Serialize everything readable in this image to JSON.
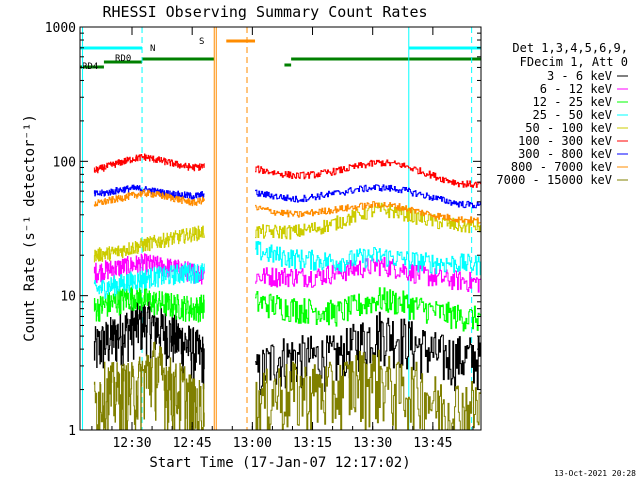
{
  "chart_data": {
    "type": "line",
    "title": "RHESSI Observing Summary Count Rates",
    "xlabel": "Start Time (17-Jan-07 12:17:02)",
    "ylabel": "Count Rate (s⁻¹ detector⁻¹)",
    "yscale": "log",
    "ylim": [
      1,
      1000
    ],
    "xlim": [
      "12:17:02",
      "13:57:00"
    ],
    "x_ticks": [
      "12:30",
      "12:45",
      "13:00",
      "13:15",
      "13:30",
      "13:45"
    ],
    "y_ticks": [
      "1",
      "10",
      "100",
      "1000"
    ],
    "timestamp": "13-Oct-2021 20:28",
    "legend": {
      "placement": "right",
      "header": [
        "Det 1,3,4,5,6,9,",
        "FDecim 1, Att 0"
      ]
    },
    "flags": [
      {
        "label": "RD4",
        "color": "#008000"
      },
      {
        "label": "RD0",
        "color": "#008000"
      },
      {
        "label": "N",
        "color": "#00ffff"
      },
      {
        "label": "S",
        "color": "#ff8c00"
      }
    ],
    "series": [
      {
        "name": "3 - 6 keV",
        "color": "#000000",
        "before": [
          4,
          4.5,
          5,
          5.5,
          6,
          6.5,
          6,
          5.5,
          5,
          4.5,
          4,
          3.5
        ],
        "after": [
          2.5,
          3.5,
          3.5,
          3.5,
          3.5,
          4.5,
          5.5,
          5,
          4.2,
          3.6,
          3.5,
          3.5
        ]
      },
      {
        "name": "6 - 12 keV",
        "color": "#ff00ff",
        "before": [
          15,
          15.5,
          16,
          16.5,
          17,
          17.5,
          17,
          16.5,
          16,
          15.5,
          15,
          14.5
        ],
        "after": [
          14,
          14,
          14,
          14,
          15,
          16,
          17,
          16,
          14.5,
          13.5,
          13,
          12.5
        ]
      },
      {
        "name": "12 - 25 keV",
        "color": "#00ff00",
        "before": [
          8,
          8.5,
          9,
          9.5,
          10,
          9.5,
          9,
          8.8,
          8.5,
          8.3,
          8,
          8.5
        ],
        "after": [
          9,
          8.5,
          8,
          7.8,
          7.5,
          8.5,
          9.5,
          9,
          8.2,
          7.5,
          7,
          6.8
        ]
      },
      {
        "name": "25 - 50 keV",
        "color": "#00ffff",
        "before": [
          11,
          11.5,
          12,
          12.5,
          13,
          13.5,
          14,
          14,
          14.5,
          15,
          15,
          15
        ],
        "after": [
          22,
          20,
          19,
          18.5,
          18,
          19,
          20,
          19,
          18,
          17.5,
          17.5,
          17
        ]
      },
      {
        "name": "50 - 100 keV",
        "color": "#cccc00",
        "before": [
          20,
          20.5,
          21,
          22,
          23,
          24,
          25,
          26,
          27,
          28,
          29,
          30
        ],
        "after": [
          30,
          30,
          30,
          32,
          35,
          40,
          44,
          42,
          38,
          35,
          33,
          33
        ]
      },
      {
        "name": "100 - 300 keV",
        "color": "#ff0000",
        "before": [
          85,
          90,
          95,
          100,
          105,
          108,
          104,
          100,
          96,
          92,
          90,
          92
        ],
        "after": [
          88,
          82,
          78,
          80,
          85,
          92,
          98,
          95,
          85,
          75,
          68,
          67
        ]
      },
      {
        "name": "300 - 800 keV",
        "color": "#0000ff",
        "before": [
          57,
          58,
          60,
          62,
          63,
          62,
          60,
          58,
          57,
          56,
          55,
          57
        ],
        "after": [
          58,
          55,
          52,
          55,
          58,
          62,
          64,
          62,
          57,
          52,
          48,
          47
        ]
      },
      {
        "name": "800 - 7000 keV",
        "color": "#ff8c00",
        "before": [
          48,
          50,
          52,
          54,
          56,
          58,
          57,
          55,
          53,
          51,
          49,
          52
        ],
        "after": [
          45,
          42,
          40,
          42,
          44,
          46,
          48,
          46,
          42,
          39,
          37,
          36
        ]
      },
      {
        "name": "7000 - 15000 keV",
        "color": "#808000",
        "before": [
          1.5,
          2,
          2,
          2,
          2,
          2.5,
          3,
          2.5,
          2,
          2,
          1.5,
          1.5
        ],
        "after": [
          1.5,
          2,
          2,
          2,
          2,
          2.5,
          2.5,
          2,
          2,
          1.5,
          1.5,
          1.5
        ]
      }
    ]
  }
}
